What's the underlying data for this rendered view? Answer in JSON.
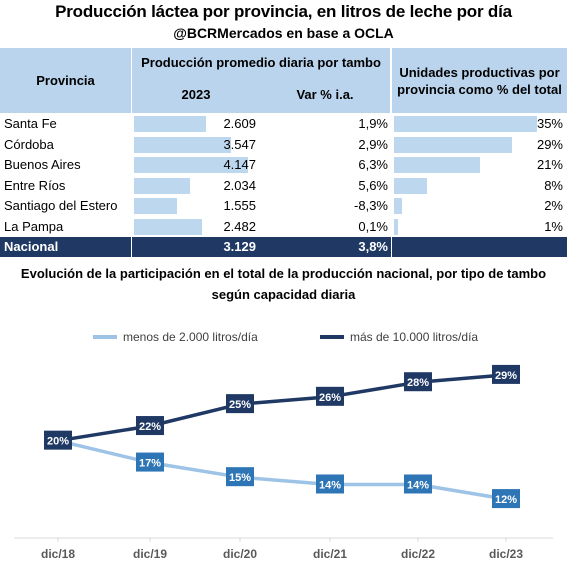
{
  "title": "Producción láctea por provincia, en litros de leche por día",
  "subtitle": "@BCRMercados en base a OCLA",
  "table": {
    "header_provincia": "Provincia",
    "header_produccion": "Producción promedio diaria por tambo",
    "header_year": "2023",
    "header_var": "Var % i.a.",
    "header_unidades": "Unidades productivas por provincia como % del total",
    "rows": [
      {
        "provincia": "Santa Fe",
        "produccion": "2.609",
        "var": "1,9%",
        "unidades": "35%",
        "produccion_value": 2609,
        "unidades_value": 35
      },
      {
        "provincia": "Córdoba",
        "produccion": "3.547",
        "var": "2,9%",
        "unidades": "29%",
        "produccion_value": 3547,
        "unidades_value": 29
      },
      {
        "provincia": "Buenos Aires",
        "produccion": "4.147",
        "var": "6,3%",
        "unidades": "21%",
        "produccion_value": 4147,
        "unidades_value": 21
      },
      {
        "provincia": "Entre Ríos",
        "produccion": "2.034",
        "var": "5,6%",
        "unidades": "8%",
        "produccion_value": 2034,
        "unidades_value": 8
      },
      {
        "provincia": "Santiago del Estero",
        "produccion": "1.555",
        "var": "-8,3%",
        "unidades": "2%",
        "produccion_value": 1555,
        "unidades_value": 2
      },
      {
        "provincia": "La Pampa",
        "produccion": "2.482",
        "var": "0,1%",
        "unidades": "1%",
        "produccion_value": 2482,
        "unidades_value": 1
      }
    ],
    "nacional": {
      "provincia": "Nacional",
      "produccion": "3.129",
      "var": "3,8%"
    }
  },
  "colors": {
    "header_bg": "#b9d4ec",
    "databar": "#bdd7ee",
    "nacional_bg": "#1f3864",
    "series_light": "#9dc3e6",
    "series_dark": "#1f3864",
    "label_light_bg": "#2e75b6"
  },
  "chart_data": {
    "type": "line",
    "title": "Evolución de la participación en el total de la producción nacional, por tipo de tambo según capacidad diaria",
    "x": [
      "dic/18",
      "dic/19",
      "dic/20",
      "dic/21",
      "dic/22",
      "dic/23"
    ],
    "series": [
      {
        "name": "menos de 2.000 litros/día",
        "values": [
          20,
          17,
          15,
          14,
          14,
          12
        ],
        "labels": [
          "20%",
          "17%",
          "15%",
          "14%",
          "14%",
          "12%"
        ]
      },
      {
        "name": "más de 10.000 litros/día",
        "values": [
          20,
          22,
          25,
          26,
          28,
          29
        ],
        "labels": [
          "20%",
          "22%",
          "25%",
          "26%",
          "28%",
          "29%"
        ]
      }
    ],
    "ylim": [
      9,
      32
    ],
    "legend": "top",
    "grid": false
  }
}
